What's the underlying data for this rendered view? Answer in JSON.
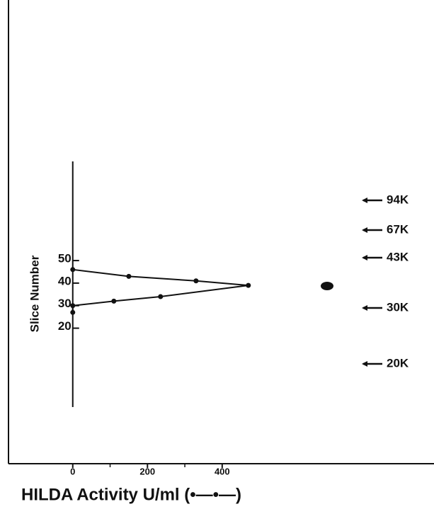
{
  "chart_data": {
    "type": "line",
    "xlabel": "HILDA Activity U/ml (•—•—)",
    "ylabel": "Slice Number",
    "series": [
      {
        "x": [
          0,
          150,
          330,
          470,
          235,
          110,
          0,
          0
        ],
        "values": [
          46,
          43,
          41,
          39,
          34,
          32,
          30,
          27
        ],
        "color": "#111111"
      }
    ],
    "xlim": [
      -172,
      967
    ],
    "xticks": [
      0,
      200,
      400
    ],
    "xminorticks": [
      100,
      300
    ],
    "ylim": [
      -15,
      94
    ],
    "yticks": [
      20,
      30,
      40,
      50
    ],
    "markers": [
      "94K",
      "67K",
      "43K",
      "30K",
      "20K"
    ]
  }
}
